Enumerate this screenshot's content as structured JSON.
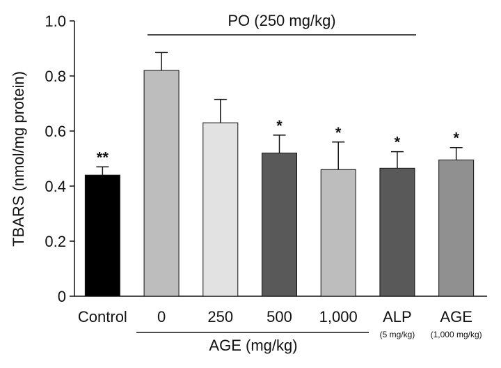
{
  "chart_data": {
    "type": "bar",
    "title": "",
    "ylabel": "TBARS (nmol/mg protein)",
    "xlabel": "",
    "ylim": [
      0,
      1.0
    ],
    "yticks": [
      "0",
      "0.2",
      "0.4",
      "0.6",
      "0.8",
      "1.0"
    ],
    "ytick_values": [
      0,
      0.2,
      0.4,
      0.6,
      0.8,
      1.0
    ],
    "categories": [
      "Control",
      "0",
      "250",
      "500",
      "1,000",
      "ALP",
      "AGE"
    ],
    "sublabels": [
      "",
      "",
      "",
      "",
      "",
      "(5 mg/kg)",
      "(1,000 mg/kg)"
    ],
    "values": [
      0.44,
      0.82,
      0.63,
      0.52,
      0.46,
      0.465,
      0.495
    ],
    "errors": [
      0.03,
      0.065,
      0.085,
      0.065,
      0.1,
      0.06,
      0.045
    ],
    "significance": [
      "**",
      "",
      "",
      "*",
      "*",
      "*",
      "*"
    ],
    "colors": [
      "#000000",
      "#bdbdbd",
      "#e2e2e2",
      "#595959",
      "#bdbdbd",
      "#595959",
      "#909090"
    ],
    "groups": {
      "top": "PO (250 mg/kg)",
      "bottom": "AGE (mg/kg)"
    }
  }
}
